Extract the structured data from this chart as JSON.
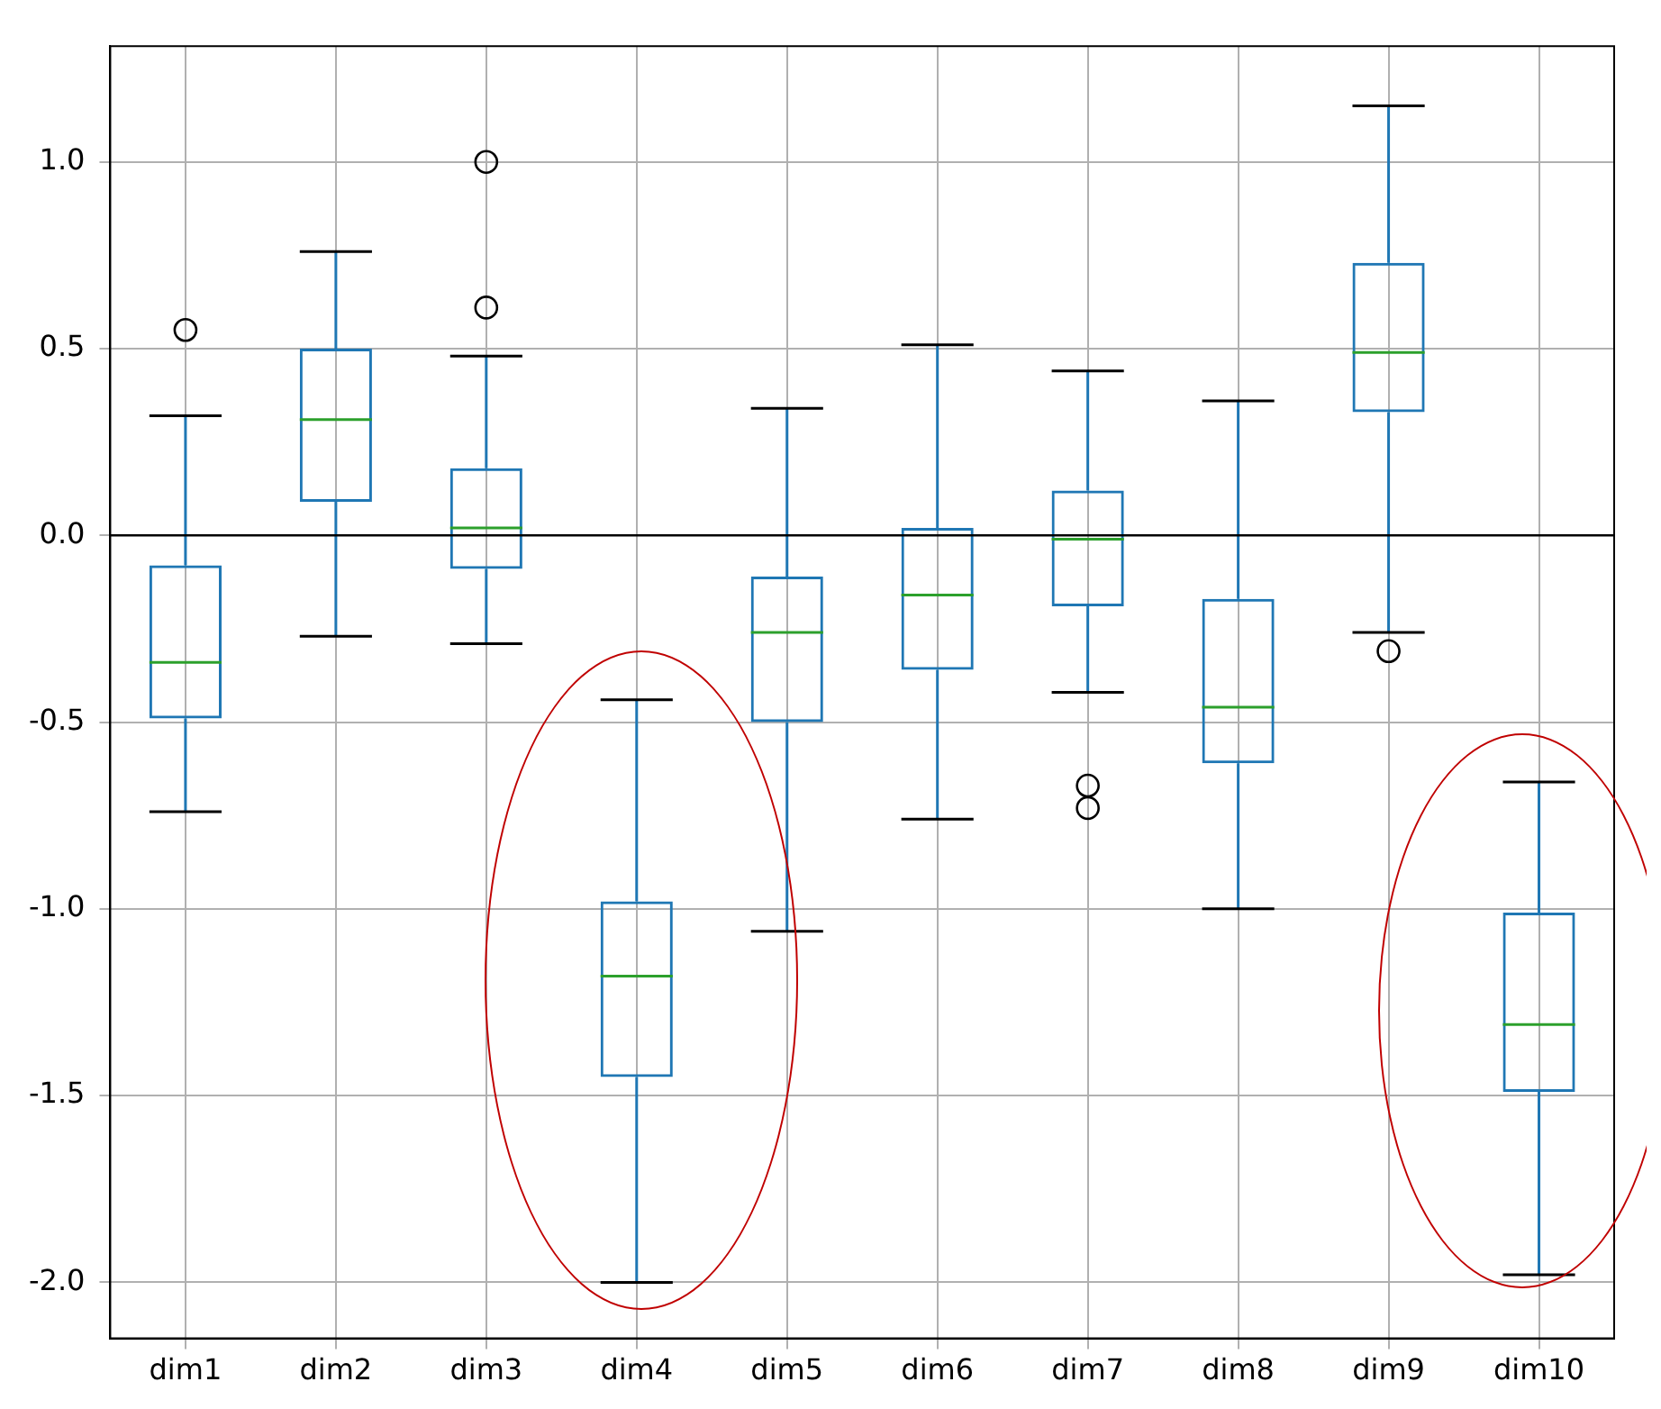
{
  "chart_data": {
    "type": "box",
    "color": "#1f77b4",
    "categories": [
      "dim1",
      "dim2",
      "dim3",
      "dim4",
      "dim5",
      "dim6",
      "dim7",
      "dim8",
      "dim9",
      "dim10"
    ],
    "boxes": [
      {
        "low": -0.74,
        "q1": -0.49,
        "median": -0.34,
        "q3": -0.08,
        "high": 0.32,
        "outliers": [
          0.55
        ]
      },
      {
        "low": -0.27,
        "q1": 0.09,
        "median": 0.31,
        "q3": 0.5,
        "high": 0.76
      },
      {
        "low": -0.29,
        "q1": -0.09,
        "median": 0.02,
        "q3": 0.18,
        "high": 0.48,
        "outliers": [
          1.0,
          0.61
        ]
      },
      {
        "low": -2.0,
        "q1": -1.45,
        "median": -1.18,
        "q3": -0.98,
        "high": -0.44
      },
      {
        "low": -1.06,
        "q1": -0.5,
        "median": -0.26,
        "q3": -0.11,
        "high": 0.34
      },
      {
        "low": -0.76,
        "q1": -0.36,
        "median": -0.16,
        "q3": 0.02,
        "high": 0.51
      },
      {
        "low": -0.42,
        "q1": -0.19,
        "median": -0.01,
        "q3": 0.12,
        "high": 0.44,
        "outliers": [
          -0.67,
          -0.73
        ]
      },
      {
        "low": -1.0,
        "q1": -0.61,
        "median": -0.46,
        "q3": -0.17,
        "high": 0.36
      },
      {
        "low": -0.26,
        "q1": 0.33,
        "median": 0.49,
        "q3": 0.73,
        "high": 1.15,
        "outliers": [
          -0.31
        ]
      },
      {
        "low": -1.98,
        "q1": -1.49,
        "median": -1.31,
        "q3": -1.01,
        "high": -0.66
      }
    ],
    "ylim": [
      -2.15,
      1.31
    ],
    "yticks": [
      {
        "value": -2,
        "label": "-2.0"
      },
      {
        "value": -1.5,
        "label": "-1.5"
      },
      {
        "value": -1,
        "label": "-1.0"
      },
      {
        "value": -0.5,
        "label": "-0.5"
      },
      {
        "value": 0,
        "label": "0.0"
      },
      {
        "value": 0.5,
        "label": "0.5"
      },
      {
        "value": 1,
        "label": "1.0"
      }
    ],
    "grid": true,
    "ref_lines": [
      {
        "axis": "y",
        "value": 0,
        "color": "#000000"
      }
    ]
  }
}
